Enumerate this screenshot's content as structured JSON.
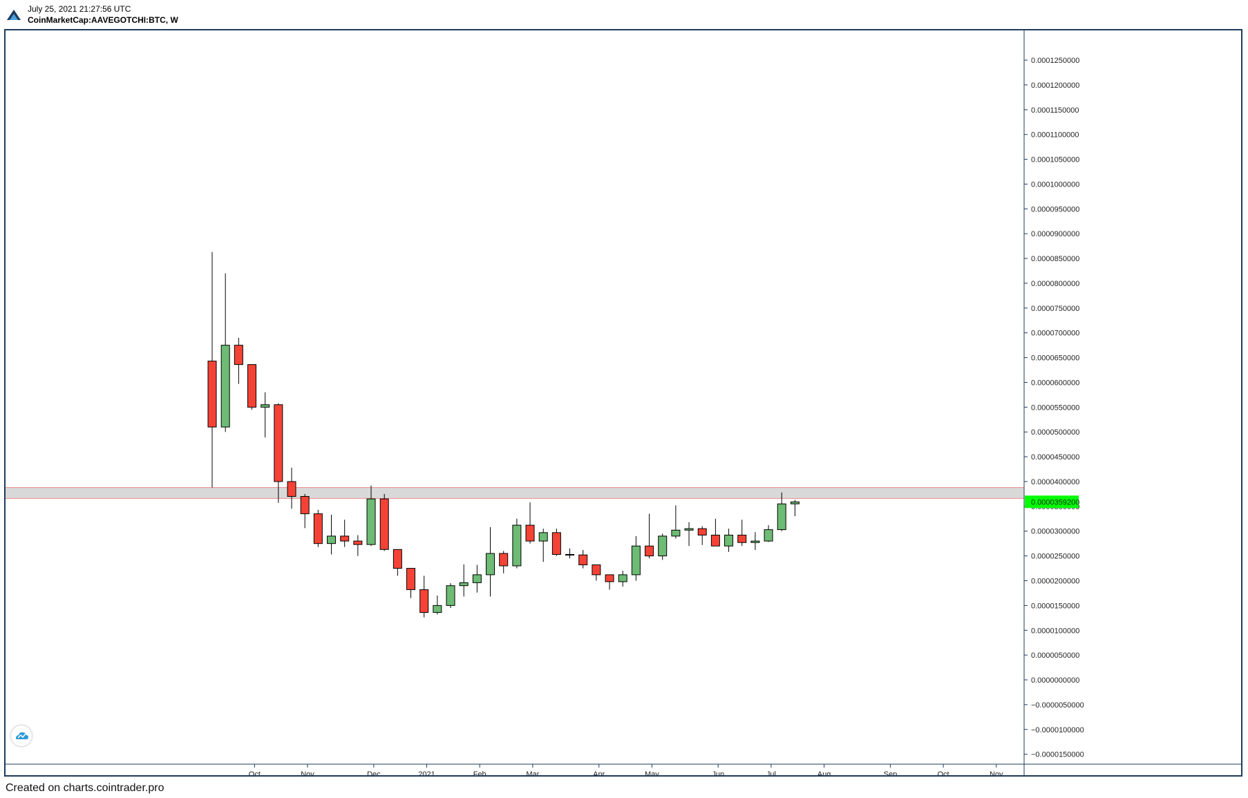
{
  "header": {
    "timestamp": "July 25, 2021 21:27:56 UTC",
    "symbol": "CoinMarketCap:AAVEGOTCHI:BTC, W",
    "logo_icon": "cointrader-logo-icon"
  },
  "footer": {
    "credit": "Created on charts.cointrader.pro"
  },
  "colors": {
    "up": "#6dbb74",
    "down": "#f44336",
    "frame": "#1f3a5a",
    "resistance_zone": "#d9d9d9",
    "resistance_line": "#e88a8a",
    "last_price_badge": "#00ff00"
  },
  "chart_data": {
    "type": "candlestick",
    "interval": "W",
    "grid": false,
    "title": "",
    "xlabel": "",
    "ylabel": "",
    "ylim": [
      -1.7e-05,
      0.000131
    ],
    "y_ticks": [
      "0.0001250000",
      "0.0001200000",
      "0.0001150000",
      "0.0001100000",
      "0.0001050000",
      "0.0001000000",
      "0.0000950000",
      "0.0000900000",
      "0.0000850000",
      "0.0000800000",
      "0.0000750000",
      "0.0000700000",
      "0.0000650000",
      "0.0000600000",
      "0.0000550000",
      "0.0000500000",
      "0.0000450000",
      "0.0000400000",
      "0.0000350000",
      "0.0000300000",
      "0.0000250000",
      "0.0000200000",
      "0.0000150000",
      "0.0000100000",
      "0.0000050000",
      "0.0000000000",
      "−0.0000050000",
      "−0.0000100000",
      "−0.0000150000"
    ],
    "y_tick_values": [
      0.000125,
      0.00012,
      0.000115,
      0.00011,
      0.000105,
      0.0001,
      9.5e-05,
      9e-05,
      8.5e-05,
      8e-05,
      7.5e-05,
      7e-05,
      6.5e-05,
      6e-05,
      5.5e-05,
      5e-05,
      4.5e-05,
      4e-05,
      3.5e-05,
      3e-05,
      2.5e-05,
      2e-05,
      1.5e-05,
      1e-05,
      5e-06,
      0,
      -5e-06,
      -1e-05,
      -1.5e-05
    ],
    "x_ticks": [
      {
        "label": "Oct",
        "week": 3.2
      },
      {
        "label": "Nov",
        "week": 7.2
      },
      {
        "label": "Dec",
        "week": 12.2
      },
      {
        "label": "2021",
        "week": 16.2
      },
      {
        "label": "Feb",
        "week": 20.2
      },
      {
        "label": "Mar",
        "week": 24.2
      },
      {
        "label": "Apr",
        "week": 29.2
      },
      {
        "label": "May",
        "week": 33.2
      },
      {
        "label": "Jun",
        "week": 38.2
      },
      {
        "label": "Jul",
        "week": 42.2
      },
      {
        "label": "Aug",
        "week": 46.2
      },
      {
        "label": "Sep",
        "week": 51.2
      },
      {
        "label": "Oct",
        "week": 55.2
      },
      {
        "label": "Nov",
        "week": 59.2
      }
    ],
    "x_range": [
      -15.6,
      61.3
    ],
    "last_price": "0.0000359200",
    "last_price_value": 3.592e-05,
    "resistance_zone": [
      3.66e-05,
      3.88e-05
    ],
    "candles": [
      {
        "o": 6.43e-05,
        "h": 8.63e-05,
        "l": 3.88e-05,
        "c": 5.1e-05
      },
      {
        "o": 5.1e-05,
        "h": 8.2e-05,
        "l": 5e-05,
        "c": 6.75e-05
      },
      {
        "o": 6.75e-05,
        "h": 6.9e-05,
        "l": 5.97e-05,
        "c": 6.36e-05
      },
      {
        "o": 6.36e-05,
        "h": 6.36e-05,
        "l": 5.45e-05,
        "c": 5.5e-05
      },
      {
        "o": 5.5e-05,
        "h": 5.8e-05,
        "l": 4.89e-05,
        "c": 5.55e-05
      },
      {
        "o": 5.55e-05,
        "h": 5.58e-05,
        "l": 3.57e-05,
        "c": 4e-05
      },
      {
        "o": 4e-05,
        "h": 4.28e-05,
        "l": 3.45e-05,
        "c": 3.7e-05
      },
      {
        "o": 3.7e-05,
        "h": 3.75e-05,
        "l": 3.06e-05,
        "c": 3.35e-05
      },
      {
        "o": 3.35e-05,
        "h": 3.43e-05,
        "l": 2.68e-05,
        "c": 2.75e-05
      },
      {
        "o": 2.75e-05,
        "h": 3.33e-05,
        "l": 2.53e-05,
        "c": 2.9e-05
      },
      {
        "o": 2.9e-05,
        "h": 3.23e-05,
        "l": 2.68e-05,
        "c": 2.8e-05
      },
      {
        "o": 2.8e-05,
        "h": 2.92e-05,
        "l": 2.5e-05,
        "c": 2.73e-05
      },
      {
        "o": 2.73e-05,
        "h": 3.92e-05,
        "l": 2.7e-05,
        "c": 3.65e-05
      },
      {
        "o": 3.65e-05,
        "h": 3.75e-05,
        "l": 2.6e-05,
        "c": 2.63e-05
      },
      {
        "o": 2.63e-05,
        "h": 2.63e-05,
        "l": 2.1e-05,
        "c": 2.25e-05
      },
      {
        "o": 2.25e-05,
        "h": 2.25e-05,
        "l": 1.65e-05,
        "c": 1.82e-05
      },
      {
        "o": 1.82e-05,
        "h": 2.1e-05,
        "l": 1.26e-05,
        "c": 1.36e-05
      },
      {
        "o": 1.36e-05,
        "h": 1.7e-05,
        "l": 1.32e-05,
        "c": 1.5e-05
      },
      {
        "o": 1.5e-05,
        "h": 1.95e-05,
        "l": 1.45e-05,
        "c": 1.9e-05
      },
      {
        "o": 1.9e-05,
        "h": 2.33e-05,
        "l": 1.68e-05,
        "c": 1.96e-05
      },
      {
        "o": 1.96e-05,
        "h": 2.32e-05,
        "l": 1.76e-05,
        "c": 2.12e-05
      },
      {
        "o": 2.12e-05,
        "h": 3.08e-05,
        "l": 1.68e-05,
        "c": 2.55e-05
      },
      {
        "o": 2.55e-05,
        "h": 2.6e-05,
        "l": 2.15e-05,
        "c": 2.3e-05
      },
      {
        "o": 2.3e-05,
        "h": 3.25e-05,
        "l": 2.25e-05,
        "c": 3.12e-05
      },
      {
        "o": 3.12e-05,
        "h": 3.58e-05,
        "l": 2.75e-05,
        "c": 2.8e-05
      },
      {
        "o": 2.8e-05,
        "h": 3.05e-05,
        "l": 2.38e-05,
        "c": 2.97e-05
      },
      {
        "o": 2.97e-05,
        "h": 3.05e-05,
        "l": 2.5e-05,
        "c": 2.53e-05
      },
      {
        "o": 2.53e-05,
        "h": 2.65e-05,
        "l": 2.45e-05,
        "c": 2.52e-05
      },
      {
        "o": 2.52e-05,
        "h": 2.62e-05,
        "l": 2.25e-05,
        "c": 2.32e-05
      },
      {
        "o": 2.32e-05,
        "h": 2.32e-05,
        "l": 2e-05,
        "c": 2.12e-05
      },
      {
        "o": 2.12e-05,
        "h": 2.12e-05,
        "l": 1.82e-05,
        "c": 1.98e-05
      },
      {
        "o": 1.98e-05,
        "h": 2.2e-05,
        "l": 1.88e-05,
        "c": 2.12e-05
      },
      {
        "o": 2.12e-05,
        "h": 2.9e-05,
        "l": 2e-05,
        "c": 2.7e-05
      },
      {
        "o": 2.7e-05,
        "h": 3.35e-05,
        "l": 2.45e-05,
        "c": 2.5e-05
      },
      {
        "o": 2.5e-05,
        "h": 2.95e-05,
        "l": 2.42e-05,
        "c": 2.9e-05
      },
      {
        "o": 2.9e-05,
        "h": 3.52e-05,
        "l": 2.85e-05,
        "c": 3.02e-05
      },
      {
        "o": 3.02e-05,
        "h": 3.18e-05,
        "l": 2.7e-05,
        "c": 3.05e-05
      },
      {
        "o": 3.05e-05,
        "h": 3.1e-05,
        "l": 2.72e-05,
        "c": 2.92e-05
      },
      {
        "o": 2.92e-05,
        "h": 3.25e-05,
        "l": 2.7e-05,
        "c": 2.7e-05
      },
      {
        "o": 2.7e-05,
        "h": 3.05e-05,
        "l": 2.58e-05,
        "c": 2.92e-05
      },
      {
        "o": 2.92e-05,
        "h": 3.23e-05,
        "l": 2.7e-05,
        "c": 2.77e-05
      },
      {
        "o": 2.77e-05,
        "h": 2.98e-05,
        "l": 2.62e-05,
        "c": 2.8e-05
      },
      {
        "o": 2.8e-05,
        "h": 3.12e-05,
        "l": 2.78e-05,
        "c": 3.03e-05
      },
      {
        "o": 3.03e-05,
        "h": 3.78e-05,
        "l": 3e-05,
        "c": 3.55e-05
      },
      {
        "o": 3.55e-05,
        "h": 3.63e-05,
        "l": 3.3e-05,
        "c": 3.59e-05
      }
    ]
  }
}
